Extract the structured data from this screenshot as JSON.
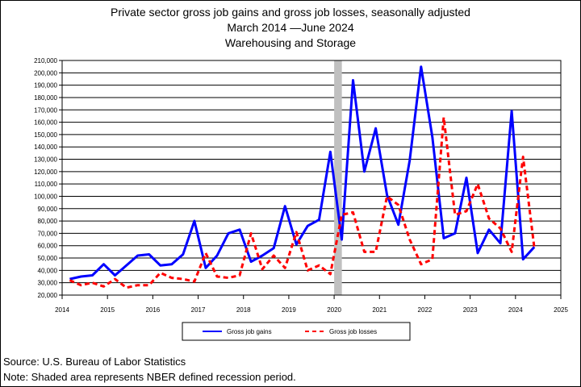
{
  "title_lines": [
    "Private sector gross job gains and gross job losses, seasonally adjusted",
    "March 2014 —June 2024",
    "Warehousing and Storage"
  ],
  "footer": {
    "source": "Source: U.S. Bureau of Labor Statistics",
    "note": "Note: Shaded area represents NBER defined recession period."
  },
  "chart_data": {
    "type": "line",
    "title": "Private sector gross job gains and gross job losses, seasonally adjusted",
    "xlim": [
      2014,
      2025
    ],
    "ylim": [
      20000,
      210000
    ],
    "x_ticks": [
      2014,
      2015,
      2016,
      2017,
      2018,
      2019,
      2020,
      2021,
      2022,
      2023,
      2024,
      2025
    ],
    "x_tick_labels": [
      "2014",
      "2015",
      "2016",
      "2017",
      "2018",
      "2019",
      "2020",
      "2021",
      "2022",
      "2023",
      "2024",
      "2025"
    ],
    "y_ticks": [
      20000,
      30000,
      40000,
      50000,
      60000,
      70000,
      80000,
      90000,
      100000,
      110000,
      120000,
      130000,
      140000,
      150000,
      160000,
      170000,
      180000,
      190000,
      200000,
      210000
    ],
    "y_tick_labels": [
      "20,000",
      "30,000",
      "40,000",
      "50,000",
      "60,000",
      "70,000",
      "80,000",
      "90,000",
      "100,000",
      "110,000",
      "120,000",
      "130,000",
      "140,000",
      "150,000",
      "160,000",
      "170,000",
      "180,000",
      "190,000",
      "200,000",
      "210,000"
    ],
    "grid": "horizontal",
    "legend_position": "bottom",
    "recession": {
      "start": 2020.0,
      "end": 2020.17,
      "color": "#c0c0c0"
    },
    "x": [
      "2014-03",
      "2014-06",
      "2014-09",
      "2014-12",
      "2015-03",
      "2015-06",
      "2015-09",
      "2015-12",
      "2016-03",
      "2016-06",
      "2016-09",
      "2016-12",
      "2017-03",
      "2017-06",
      "2017-09",
      "2017-12",
      "2018-03",
      "2018-06",
      "2018-09",
      "2018-12",
      "2019-03",
      "2019-06",
      "2019-09",
      "2019-12",
      "2020-03",
      "2020-06",
      "2020-09",
      "2020-12",
      "2021-03",
      "2021-06",
      "2021-09",
      "2021-12",
      "2022-03",
      "2022-06",
      "2022-09",
      "2022-12",
      "2023-03",
      "2023-06",
      "2023-09",
      "2023-12",
      "2024-03",
      "2024-06"
    ],
    "series": [
      {
        "name": "Gross job gains",
        "color": "#0000ff",
        "style": "solid",
        "values": [
          33000,
          35000,
          36000,
          45000,
          36000,
          44000,
          52000,
          53000,
          44000,
          45000,
          53000,
          80000,
          42000,
          52000,
          70000,
          73000,
          47000,
          52000,
          58000,
          92000,
          61000,
          76000,
          81000,
          136000,
          65000,
          194000,
          120000,
          155000,
          101000,
          77000,
          129000,
          205000,
          148000,
          66000,
          70000,
          115000,
          54000,
          73000,
          62000,
          169000,
          49000,
          59000
        ]
      },
      {
        "name": "Gross job losses",
        "color": "#ff0000",
        "style": "dashed",
        "values": [
          32000,
          28000,
          30000,
          27000,
          33000,
          26000,
          28000,
          28000,
          38000,
          34000,
          33000,
          31000,
          54000,
          35000,
          34000,
          36000,
          70000,
          41000,
          52000,
          42000,
          71000,
          40000,
          44000,
          37000,
          85000,
          87000,
          55000,
          55000,
          100000,
          93000,
          65000,
          45000,
          49000,
          164000,
          85000,
          88000,
          110000,
          82000,
          74000,
          55000,
          132000,
          58000
        ]
      }
    ]
  }
}
